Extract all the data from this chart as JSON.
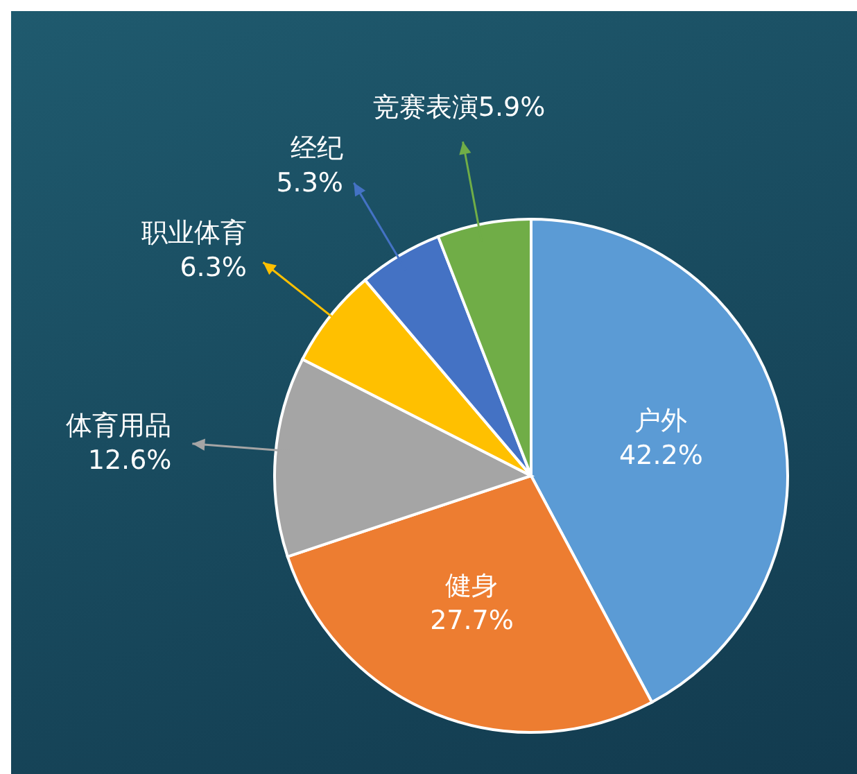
{
  "chart_data": {
    "type": "pie",
    "categories": [
      "户外",
      "健身",
      "体育用品",
      "职业体育",
      "经纪",
      "竞赛表演"
    ],
    "values": [
      42.2,
      27.7,
      12.6,
      6.3,
      5.3,
      5.9
    ],
    "value_labels": [
      "42.2%",
      "27.7%",
      "12.6%",
      "6.3%",
      "5.3%",
      "5.9%"
    ],
    "colors": [
      "#5b9bd5",
      "#ed7d31",
      "#a5a5a5",
      "#ffc000",
      "#4472c4",
      "#70ad47"
    ]
  }
}
